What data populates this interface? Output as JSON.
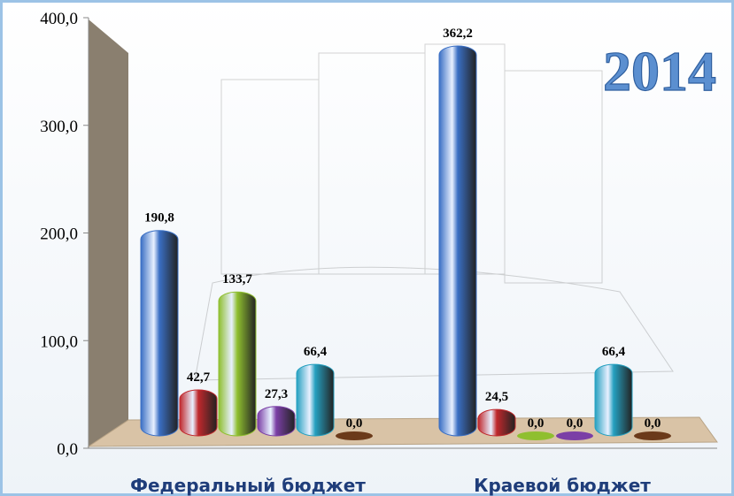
{
  "chart_data": {
    "type": "bar",
    "title": "2014",
    "categories": [
      "Федеральный бюджет",
      "Краевой бюджет"
    ],
    "series": [
      {
        "color": "#3a6fc4",
        "values": [
          190.8,
          362.2
        ],
        "value_labels": [
          "190,8",
          "362,2"
        ]
      },
      {
        "color": "#c0282c",
        "values": [
          42.7,
          24.5
        ],
        "value_labels": [
          "42,7",
          "24,5"
        ]
      },
      {
        "color": "#8fbf2f",
        "values": [
          133.7,
          0.0
        ],
        "value_labels": [
          "133,7",
          "0,0"
        ]
      },
      {
        "color": "#7b3fa6",
        "values": [
          27.3,
          0.0
        ],
        "value_labels": [
          "27,3",
          "0,0"
        ]
      },
      {
        "color": "#25a0c0",
        "values": [
          66.4,
          66.4
        ],
        "value_labels": [
          "66,4",
          "66,4"
        ]
      },
      {
        "color": "#6b3a1a",
        "values": [
          0.0,
          0.0
        ],
        "value_labels": [
          "0,0",
          "0,0"
        ]
      }
    ],
    "ylim": [
      0,
      400
    ],
    "yticks": [
      {
        "value": 0,
        "label": "0,0"
      },
      {
        "value": 100,
        "label": "100,0"
      },
      {
        "value": 200,
        "label": "200,0"
      },
      {
        "value": 300,
        "label": "300,0"
      },
      {
        "value": 400,
        "label": "400,0"
      }
    ]
  }
}
